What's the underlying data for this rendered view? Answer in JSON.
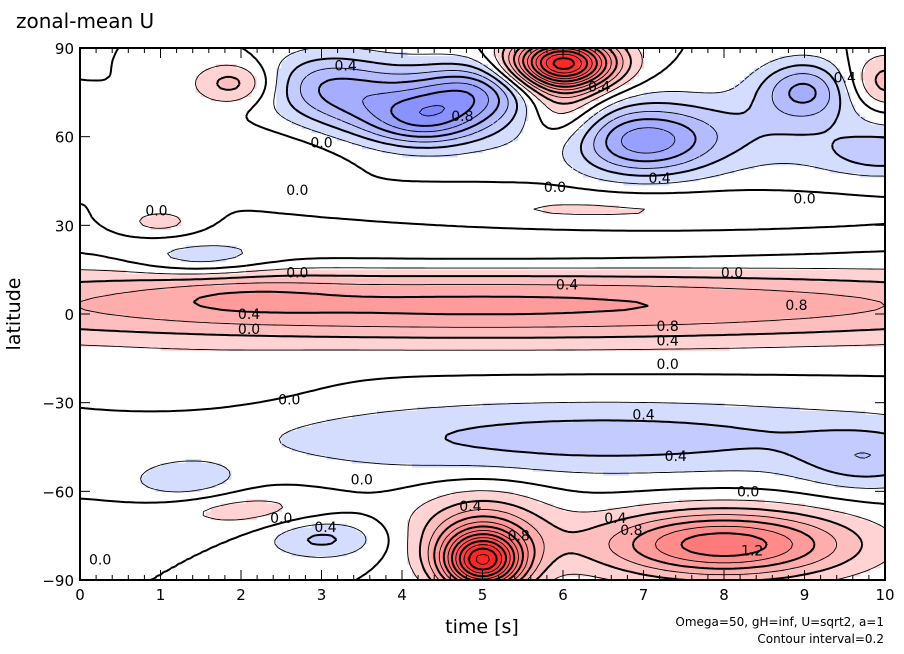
{
  "chart_data": {
    "type": "heatmap",
    "subtype": "filled-contour",
    "title": "zonal-mean U",
    "xlabel": "time [s]",
    "ylabel": "latitude",
    "xlim": [
      0,
      10
    ],
    "ylim": [
      -90,
      90
    ],
    "x_ticks": [
      0,
      1,
      2,
      3,
      4,
      5,
      6,
      7,
      8,
      9,
      10
    ],
    "y_ticks": [
      -90,
      -60,
      -30,
      0,
      30,
      60,
      90
    ],
    "x_tick_labels": [
      "0",
      "1",
      "2",
      "3",
      "4",
      "5",
      "6",
      "7",
      "8",
      "9",
      "10"
    ],
    "y_tick_labels": [
      "−90",
      "−60",
      "−30",
      "0",
      "30",
      "60",
      "90"
    ],
    "contour_interval": 0.2,
    "annotations": [
      "Omega=50, gH=inf, U=sqrt2, a=1",
      "Contour interval=0.2"
    ],
    "colors": {
      "positive": "#ff3030",
      "negative": "#4050ff",
      "zero": "#ffffff"
    },
    "contour_labels": [
      {
        "text": "0.4",
        "t": 3.3,
        "lat": 84
      },
      {
        "text": "0.4",
        "t": 6.45,
        "lat": 77
      },
      {
        "text": "0.8",
        "t": 4.75,
        "lat": 67
      },
      {
        "text": "0.4",
        "t": 9.5,
        "lat": 80
      },
      {
        "text": "0.0",
        "t": 3.0,
        "lat": 58
      },
      {
        "text": "0.4",
        "t": 7.2,
        "lat": 46
      },
      {
        "text": "0.0",
        "t": 5.9,
        "lat": 43
      },
      {
        "text": "0.0",
        "t": 9.0,
        "lat": 39
      },
      {
        "text": "0.0",
        "t": 2.7,
        "lat": 42
      },
      {
        "text": "0.0",
        "t": 0.95,
        "lat": 35
      },
      {
        "text": "0.0",
        "t": 2.7,
        "lat": 14
      },
      {
        "text": "0.0",
        "t": 8.1,
        "lat": 14
      },
      {
        "text": "0.4",
        "t": 6.05,
        "lat": 10
      },
      {
        "text": "0.4",
        "t": 2.1,
        "lat": 0
      },
      {
        "text": "0.0",
        "t": 2.1,
        "lat": -5
      },
      {
        "text": "0.8",
        "t": 8.9,
        "lat": 3
      },
      {
        "text": "0.8",
        "t": 7.3,
        "lat": -4
      },
      {
        "text": "0.4",
        "t": 7.3,
        "lat": -9
      },
      {
        "text": "0.0",
        "t": 7.3,
        "lat": -17
      },
      {
        "text": "0.0",
        "t": 2.6,
        "lat": -29
      },
      {
        "text": "0.4",
        "t": 7.0,
        "lat": -34
      },
      {
        "text": "0.4",
        "t": 7.4,
        "lat": -48
      },
      {
        "text": "0.0",
        "t": 8.3,
        "lat": -60
      },
      {
        "text": "0.0",
        "t": 3.5,
        "lat": -56
      },
      {
        "text": "0.0",
        "t": 2.5,
        "lat": -69
      },
      {
        "text": "0.4",
        "t": 3.05,
        "lat": -72
      },
      {
        "text": "0.4",
        "t": 4.85,
        "lat": -65
      },
      {
        "text": "0.8",
        "t": 5.45,
        "lat": -75
      },
      {
        "text": "0.4",
        "t": 6.65,
        "lat": -69
      },
      {
        "text": "0.8",
        "t": 6.85,
        "lat": -73
      },
      {
        "text": "1.2",
        "t": 8.35,
        "lat": -80
      },
      {
        "text": "0.0",
        "t": 0.25,
        "lat": -83
      }
    ],
    "features": [
      {
        "t": 6.0,
        "lat": 85,
        "st": 0.45,
        "sl": 6,
        "amp": 2.4
      },
      {
        "t": 6.0,
        "lat": 70,
        "st": 0.35,
        "sl": 10,
        "amp": 0.5
      },
      {
        "t": 5.0,
        "lat": -84,
        "st": 0.35,
        "sl": 7,
        "amp": 2.2
      },
      {
        "t": 5.0,
        "lat": -74,
        "st": 0.6,
        "sl": 10,
        "amp": 0.7
      },
      {
        "t": 8.0,
        "lat": -78,
        "st": 1.1,
        "sl": 8,
        "amp": 1.35
      },
      {
        "t": 1.9,
        "lat": 78,
        "st": 0.35,
        "sl": 5,
        "amp": 0.5
      },
      {
        "t": 10.0,
        "lat": 78,
        "st": 0.35,
        "sl": 7,
        "amp": 0.55
      },
      {
        "t": 3.8,
        "lat": 72,
        "st": 0.7,
        "sl": 9,
        "amp": -0.7
      },
      {
        "t": 4.9,
        "lat": 75,
        "st": 0.5,
        "sl": 7,
        "amp": -0.85
      },
      {
        "t": 4.3,
        "lat": 65,
        "st": 0.5,
        "sl": 6,
        "amp": -0.7
      },
      {
        "t": 3.0,
        "lat": 78,
        "st": 0.5,
        "sl": 8,
        "amp": -0.5
      },
      {
        "t": 7.0,
        "lat": 58,
        "st": 0.6,
        "sl": 8,
        "amp": -0.85
      },
      {
        "t": 9.0,
        "lat": 76,
        "st": 0.4,
        "sl": 7,
        "amp": -0.75
      },
      {
        "t": 8.0,
        "lat": 62,
        "st": 2.0,
        "sl": 10,
        "amp": -0.35
      },
      {
        "t": 10.0,
        "lat": 54,
        "st": 0.5,
        "sl": 5,
        "amp": -0.4
      },
      {
        "t": 5.0,
        "lat": 3,
        "st": 6.0,
        "sl": 9,
        "amp": 0.85
      },
      {
        "t": 2.0,
        "lat": 7,
        "st": 0.8,
        "sl": 5,
        "amp": 0.15
      },
      {
        "t": 1.0,
        "lat": 31,
        "st": 0.35,
        "sl": 3.5,
        "amp": 0.3
      },
      {
        "t": 6.5,
        "lat": 35,
        "st": 1.8,
        "sl": 5,
        "amp": 0.25
      },
      {
        "t": 1.6,
        "lat": 55,
        "st": 1.3,
        "sl": 6,
        "amp": 0.2
      },
      {
        "t": 5.0,
        "lat": 22,
        "st": 3.5,
        "sl": 6,
        "amp": -0.22
      },
      {
        "t": 1.5,
        "lat": 18,
        "st": 0.6,
        "sl": 4,
        "amp": -0.3
      },
      {
        "t": 6.5,
        "lat": -42,
        "st": 3.0,
        "sl": 9,
        "amp": -0.5
      },
      {
        "t": 9.8,
        "lat": -50,
        "st": 0.6,
        "sl": 7,
        "amp": -0.4
      },
      {
        "t": 1.3,
        "lat": -57,
        "st": 0.5,
        "sl": 5,
        "amp": -0.35
      },
      {
        "t": 3.0,
        "lat": -76,
        "st": 0.5,
        "sl": 5,
        "amp": -0.45
      },
      {
        "t": 2.0,
        "lat": -66,
        "st": 0.8,
        "sl": 5,
        "amp": 0.3
      },
      {
        "t": 1.5,
        "lat": -25,
        "st": 1.0,
        "sl": 7,
        "amp": 0.12
      }
    ]
  }
}
